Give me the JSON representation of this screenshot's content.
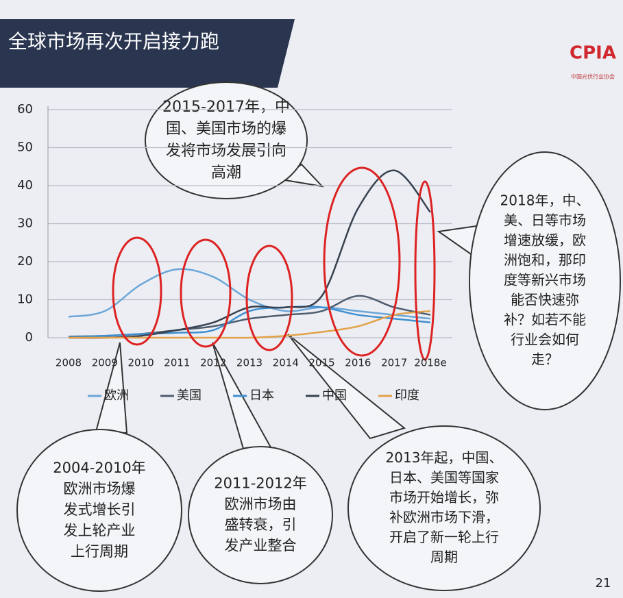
{
  "slide": {
    "title": "全球市场再次开启接力跑",
    "logo": "CPIA",
    "logo_caption": "中国光伏行业协会",
    "page_number": "21",
    "callouts": [
      {
        "lines": [
          "2015-2017年，中",
          "国、美国市场的爆",
          "发将市场发展引向",
          "高潮"
        ]
      },
      {
        "lines": [
          "2018年，中、",
          "美、日等市场",
          "增速放缓，欧",
          "洲饱和，那印",
          "度等新兴市场",
          "能否快速弥",
          "补？如若不能",
          "行业会如何",
          "走？"
        ]
      },
      {
        "lines": [
          "2004-2010年",
          "欧洲市场爆",
          "发式增长引",
          "发上轮产业",
          "上行周期"
        ]
      },
      {
        "lines": [
          "2011-2012年",
          "欧洲市场由",
          "盛转衰，引",
          "发产业整合"
        ]
      },
      {
        "lines": [
          "2013年起，中国、",
          "日本、美国等国家",
          "市场开始增长，弥",
          "补欧洲市场下滑，",
          "开启了新一轮上行",
          "周期"
        ]
      }
    ]
  },
  "chart_data": {
    "type": "line",
    "categories": [
      "2008",
      "2009",
      "2010",
      "2011",
      "2012",
      "2013",
      "2014",
      "2015",
      "2016",
      "2017",
      "2018e"
    ],
    "series": [
      {
        "name": "欧洲",
        "color": "#6aa6d8",
        "values": [
          5.5,
          7,
          14,
          18,
          16,
          10,
          7,
          8,
          7,
          6,
          5
        ]
      },
      {
        "name": "美国",
        "color": "#4d5c6e",
        "values": [
          0.3,
          0.5,
          1,
          2,
          3,
          5,
          6,
          7,
          11,
          8,
          6
        ]
      },
      {
        "name": "日本",
        "color": "#3f8fd0",
        "values": [
          0.2,
          0.5,
          1,
          1.3,
          2,
          7,
          8,
          8,
          6,
          5,
          4
        ]
      },
      {
        "name": "中国",
        "color": "#37414f",
        "values": [
          0,
          0,
          0.5,
          2,
          4,
          8,
          8,
          11,
          34,
          44,
          33
        ]
      },
      {
        "name": "印度",
        "color": "#e3a24a",
        "values": [
          0,
          0,
          0,
          0,
          0,
          0,
          0.5,
          1.5,
          3,
          6,
          7
        ]
      }
    ],
    "ylim": [
      0,
      60
    ],
    "yticks": [
      0,
      10,
      20,
      30,
      40,
      50,
      60
    ],
    "grid": true
  }
}
